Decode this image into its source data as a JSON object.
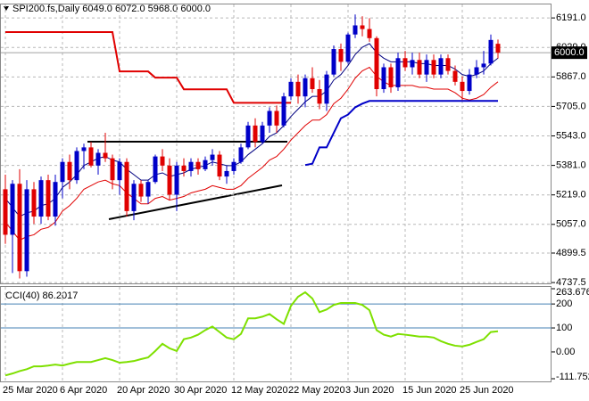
{
  "chart_data": {
    "type": "candlestick",
    "title": "SPI200.fs,Daily  6049.0 6072.0 5968.0 6000.0",
    "categories": [
      "25 Mar 2020",
      null,
      null,
      null,
      null,
      null,
      null,
      null,
      "6 Apr 2020",
      null,
      null,
      null,
      null,
      null,
      null,
      null,
      "20 Apr 2020",
      null,
      null,
      null,
      null,
      null,
      null,
      null,
      "30 Apr 2020",
      null,
      null,
      null,
      null,
      null,
      null,
      null,
      "12 May 2020",
      null,
      null,
      null,
      null,
      null,
      null,
      null,
      "22 May 2020",
      null,
      null,
      null,
      null,
      null,
      null,
      null,
      "3 Jun 2020",
      null,
      null,
      null,
      null,
      null,
      null,
      null,
      "15 Jun 2020",
      null,
      null,
      null,
      null,
      null,
      null,
      null,
      "25 Jun 2020",
      null,
      null,
      null,
      null,
      null
    ],
    "open": [
      5250,
      5000,
      5280,
      4800,
      5250,
      5100,
      5300,
      5100,
      5290,
      5400,
      5300,
      5460,
      5480,
      5380,
      5450,
      5420,
      5300,
      5400,
      5130,
      5280,
      5210,
      5290,
      5430,
      5380,
      5220,
      5380,
      5350,
      5400,
      5360,
      5410,
      5440,
      5320,
      5350,
      5400,
      5480,
      5600,
      5510,
      5600,
      5680,
      5600,
      5760,
      5840,
      5760,
      5860,
      5800,
      5720,
      5880,
      6020,
      5950,
      6100,
      6150,
      6130,
      6080,
      5800,
      5920,
      5810,
      5970,
      5920,
      5960,
      5880,
      5960,
      5880,
      5970,
      5900,
      5840,
      5790,
      5880,
      5920,
      5940,
      6049
    ],
    "high": [
      5330,
      5300,
      5360,
      5300,
      5290,
      5320,
      5330,
      5330,
      5420,
      5440,
      5480,
      5500,
      5510,
      5470,
      5560,
      5440,
      5420,
      5420,
      5300,
      5300,
      5300,
      5440,
      5470,
      5420,
      5400,
      5420,
      5420,
      5420,
      5430,
      5470,
      5460,
      5380,
      5420,
      5500,
      5620,
      5640,
      5620,
      5700,
      5710,
      5780,
      5860,
      5880,
      5880,
      5920,
      5850,
      5900,
      6040,
      6050,
      6110,
      6210,
      6200,
      6190,
      6090,
      5940,
      5940,
      6000,
      6010,
      6000,
      6000,
      5990,
      5990,
      5990,
      5990,
      5930,
      5870,
      5910,
      5960,
      6010,
      6100,
      6072
    ],
    "low": [
      4950,
      4790,
      4760,
      4770,
      5060,
      5060,
      5080,
      5050,
      5200,
      5250,
      5280,
      5360,
      5370,
      5330,
      5400,
      5250,
      5220,
      5100,
      5080,
      5180,
      5170,
      5280,
      5350,
      5190,
      5130,
      5320,
      5320,
      5330,
      5350,
      5380,
      5300,
      5280,
      5330,
      5390,
      5470,
      5480,
      5500,
      5560,
      5560,
      5590,
      5740,
      5720,
      5700,
      5780,
      5690,
      5680,
      5870,
      5900,
      5940,
      6080,
      6090,
      6060,
      5760,
      5780,
      5780,
      5790,
      5900,
      5880,
      5860,
      5840,
      5860,
      5860,
      5880,
      5820,
      5740,
      5770,
      5860,
      5880,
      5930,
      5968
    ],
    "close": [
      5000,
      5280,
      4800,
      5250,
      5100,
      5300,
      5100,
      5290,
      5400,
      5300,
      5460,
      5480,
      5380,
      5450,
      5420,
      5300,
      5400,
      5130,
      5280,
      5210,
      5290,
      5430,
      5380,
      5220,
      5380,
      5350,
      5400,
      5360,
      5410,
      5440,
      5320,
      5350,
      5400,
      5480,
      5600,
      5510,
      5600,
      5680,
      5600,
      5760,
      5840,
      5760,
      5860,
      5800,
      5720,
      5880,
      6020,
      5950,
      6100,
      6150,
      6130,
      6080,
      5800,
      5920,
      5810,
      5970,
      5920,
      5960,
      5880,
      5960,
      5880,
      5970,
      5900,
      5840,
      5790,
      5880,
      5920,
      5940,
      6070,
      6000
    ],
    "up_color": "#0000c8",
    "down_color": "#e00000",
    "lines": [
      {
        "color": "#000080",
        "width": 1,
        "values": [
          5200,
          5150,
          5100,
          5120,
          5130,
          5160,
          5170,
          5200,
          5260,
          5290,
          5330,
          5380,
          5400,
          5420,
          5430,
          5410,
          5400,
          5360,
          5330,
          5300,
          5300,
          5330,
          5340,
          5320,
          5330,
          5340,
          5360,
          5370,
          5380,
          5400,
          5390,
          5380,
          5380,
          5400,
          5440,
          5470,
          5500,
          5540,
          5560,
          5600,
          5650,
          5690,
          5730,
          5760,
          5760,
          5790,
          5850,
          5880,
          5930,
          5990,
          6030,
          6050,
          6000,
          5970,
          5950,
          5950,
          5950,
          5950,
          5940,
          5940,
          5930,
          5930,
          5930,
          5910,
          5880,
          5870,
          5880,
          5900,
          5940,
          5970
        ]
      },
      {
        "color": "#e00000",
        "width": 1,
        "values": [
          5070,
          5020,
          4970,
          4990,
          5000,
          5030,
          5040,
          5070,
          5130,
          5160,
          5200,
          5250,
          5270,
          5290,
          5300,
          5280,
          5270,
          5230,
          5200,
          5170,
          5170,
          5200,
          5210,
          5190,
          5200,
          5210,
          5230,
          5240,
          5250,
          5270,
          5260,
          5250,
          5250,
          5270,
          5310,
          5340,
          5370,
          5410,
          5430,
          5470,
          5520,
          5560,
          5600,
          5630,
          5630,
          5660,
          5720,
          5750,
          5800,
          5860,
          5900,
          5920,
          5870,
          5840,
          5820,
          5820,
          5820,
          5820,
          5810,
          5810,
          5800,
          5800,
          5800,
          5780,
          5750,
          5740,
          5750,
          5770,
          5810,
          5840
        ]
      },
      {
        "color": "#e00000",
        "width": 2,
        "values": [
          6113,
          6113,
          6113,
          6113,
          6113,
          6113,
          6113,
          6113,
          6113,
          6113,
          6113,
          6113,
          6113,
          6113,
          6113,
          6113,
          5897,
          5897,
          5897,
          5897,
          5897,
          5863,
          5863,
          5863,
          5863,
          5799,
          5799,
          5799,
          5799,
          5799,
          5799,
          5799,
          5725,
          5725,
          5725,
          5725,
          5725,
          5725,
          5725,
          5725,
          5725,
          null,
          null,
          null,
          null,
          null,
          null,
          null,
          null,
          null,
          null,
          null,
          null,
          null,
          null,
          null,
          null,
          null,
          null,
          null,
          null,
          null,
          null,
          null,
          null,
          null,
          null,
          null,
          null,
          null
        ]
      },
      {
        "color": "#0000c8",
        "width": 2,
        "values": [
          null,
          null,
          null,
          null,
          null,
          null,
          null,
          null,
          null,
          null,
          null,
          null,
          null,
          null,
          null,
          null,
          null,
          null,
          null,
          null,
          null,
          null,
          null,
          null,
          null,
          null,
          null,
          null,
          null,
          null,
          null,
          null,
          null,
          null,
          null,
          null,
          null,
          null,
          null,
          null,
          null,
          null,
          5383,
          5390,
          5480,
          5480,
          5560,
          5640,
          5660,
          5700,
          5720,
          5735,
          5735,
          5735,
          5735,
          5735,
          5735,
          5735,
          5735,
          5735,
          5735,
          5735,
          5735,
          5735,
          5735,
          5735,
          5735,
          5735,
          5735,
          5735
        ]
      }
    ],
    "ylim": [
      4733,
      6265
    ],
    "yticks": [
      {
        "value": 6191,
        "label": "6191.0"
      },
      {
        "value": 6029,
        "label": "6029.0"
      },
      {
        "value": 5867,
        "label": "5867.0"
      },
      {
        "value": 5705,
        "label": "5705.0"
      },
      {
        "value": 5543,
        "label": "5543.0"
      },
      {
        "value": 5381,
        "label": "5381.0"
      },
      {
        "value": 5219,
        "label": "5219.0"
      },
      {
        "value": 5057,
        "label": "5057.0"
      },
      4899.5,
      {
        "value": 4737.5,
        "label": "4737.5"
      }
    ],
    "last_price": {
      "value": 6000,
      "label": "6000.0"
    },
    "grid": true,
    "indicator": {
      "type": "line",
      "title": "CCI(40) 86.2017",
      "color": "#7ee000",
      "values": [
        -98,
        -90,
        -80,
        -72,
        -60,
        -60,
        -57,
        -53,
        -57,
        -49,
        -42,
        -42,
        -42,
        -34,
        -26,
        -34,
        -45,
        -42,
        -38,
        -30,
        -23,
        4,
        34,
        15,
        4,
        53,
        60,
        72,
        91,
        106,
        83,
        60,
        53,
        75,
        140,
        140,
        147,
        158,
        136,
        117,
        192,
        230,
        249,
        223,
        166,
        177,
        196,
        204,
        204,
        204,
        196,
        174,
        91,
        72,
        64,
        75,
        72,
        68,
        64,
        64,
        60,
        45,
        34,
        26,
        23,
        30,
        42,
        53,
        83,
        86.2017
      ],
      "ylim": [
        -111.752,
        263.6764
      ],
      "yticks": [
        263.6764,
        200,
        100,
        {
          "value": 0,
          "label": "0.00"
        },
        -111.752
      ],
      "levels": [
        200,
        100
      ],
      "level_color": "#4682b4"
    }
  }
}
